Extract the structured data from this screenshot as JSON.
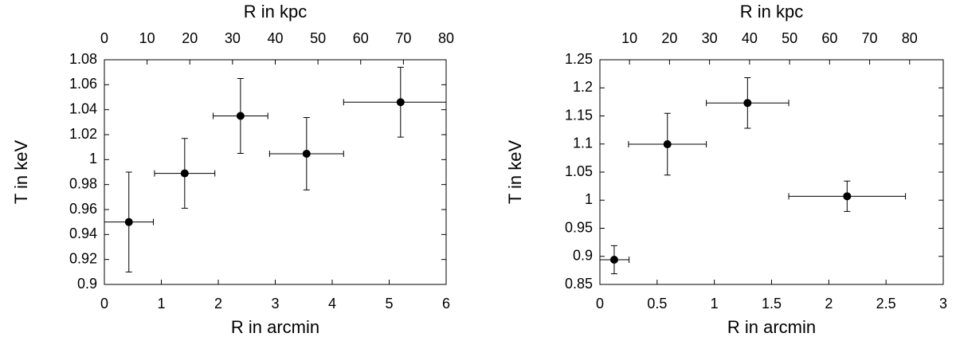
{
  "chart_data": [
    {
      "type": "scatter",
      "x_label": "R in arcmin",
      "x2_label": "R in kpc",
      "y_label": "T in keV",
      "x": [
        0.43,
        1.41,
        2.39,
        3.55,
        5.2
      ],
      "x_err": [
        0.43,
        0.53,
        0.48,
        0.65,
        1.0
      ],
      "values": [
        0.95,
        0.989,
        1.035,
        1.0047,
        1.046
      ],
      "y_err": [
        0.04,
        0.028,
        0.03,
        0.029,
        0.028
      ],
      "color": "#000000",
      "xlim": [
        0,
        6
      ],
      "xticks": [
        0,
        1,
        2,
        3,
        4,
        5,
        6
      ],
      "x2lim": [
        0,
        80
      ],
      "x2ticks": [
        0,
        10,
        20,
        30,
        40,
        50,
        60,
        70,
        80
      ],
      "ylim": [
        0.9,
        1.08
      ],
      "yticks": [
        0.9,
        0.92,
        0.94,
        0.96,
        0.98,
        1,
        1.02,
        1.04,
        1.06,
        1.08
      ]
    },
    {
      "type": "scatter",
      "x_label": "R in arcmin",
      "x2_label": "R in kpc",
      "y_label": "T in keV",
      "x": [
        0.125,
        0.59,
        1.29,
        2.16
      ],
      "x_err": [
        0.13,
        0.34,
        0.36,
        0.51
      ],
      "values": [
        0.894,
        1.0996,
        1.173,
        1.007
      ],
      "y_err": [
        0.025,
        0.055,
        0.045,
        0.027
      ],
      "color": "#000000",
      "xlim": [
        0,
        3
      ],
      "xticks": [
        0,
        0.5,
        1,
        1.5,
        2,
        2.5,
        3
      ],
      "x2lim": [
        2.6,
        88.4
      ],
      "x2ticks": [
        10,
        20,
        30,
        40,
        50,
        60,
        70,
        80
      ],
      "ylim": [
        0.85,
        1.25
      ],
      "yticks": [
        0.85,
        0.9,
        0.95,
        1,
        1.05,
        1.1,
        1.15,
        1.2,
        1.25
      ]
    }
  ]
}
